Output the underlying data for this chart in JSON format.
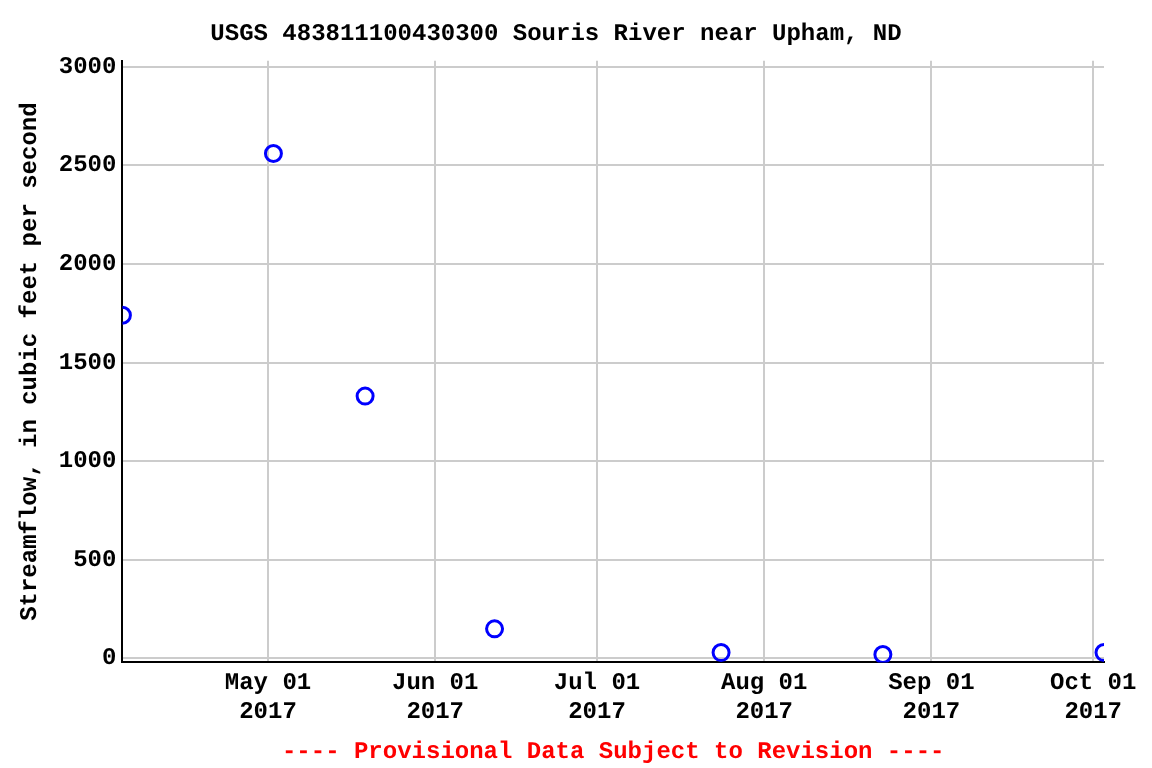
{
  "chart_data": {
    "type": "scatter",
    "title": "USGS 483811100430300 Souris River near Upham, ND",
    "ylabel": "Streamflow, in cubic feet per second",
    "annotations": [
      "---- Provisional Data Subject to Revision ----"
    ],
    "x": [
      "2017-04-04",
      "2017-05-02",
      "2017-05-19",
      "2017-06-12",
      "2017-07-24",
      "2017-08-23",
      "2017-10-03"
    ],
    "series": [
      {
        "color": "#0000ff",
        "values": [
          1740,
          2560,
          1330,
          150,
          30,
          20,
          30
        ]
      }
    ],
    "xlim": [
      "2017-04-04",
      "2017-10-03"
    ],
    "xticks": [
      {
        "value": "2017-05-01",
        "label": "May 01 2017"
      },
      {
        "value": "2017-06-01",
        "label": "Jun 01 2017"
      },
      {
        "value": "2017-07-01",
        "label": "Jul 01 2017"
      },
      {
        "value": "2017-08-01",
        "label": "Aug 01 2017"
      },
      {
        "value": "2017-09-01",
        "label": "Sep 01 2017"
      },
      {
        "value": "2017-10-01",
        "label": "Oct 01 2017"
      }
    ],
    "ylim": [
      -20,
      3030
    ],
    "yticks": [
      0,
      500,
      1000,
      1500,
      2000,
      2500,
      3000
    ],
    "grid": true,
    "legend": false,
    "marker": "circle"
  }
}
